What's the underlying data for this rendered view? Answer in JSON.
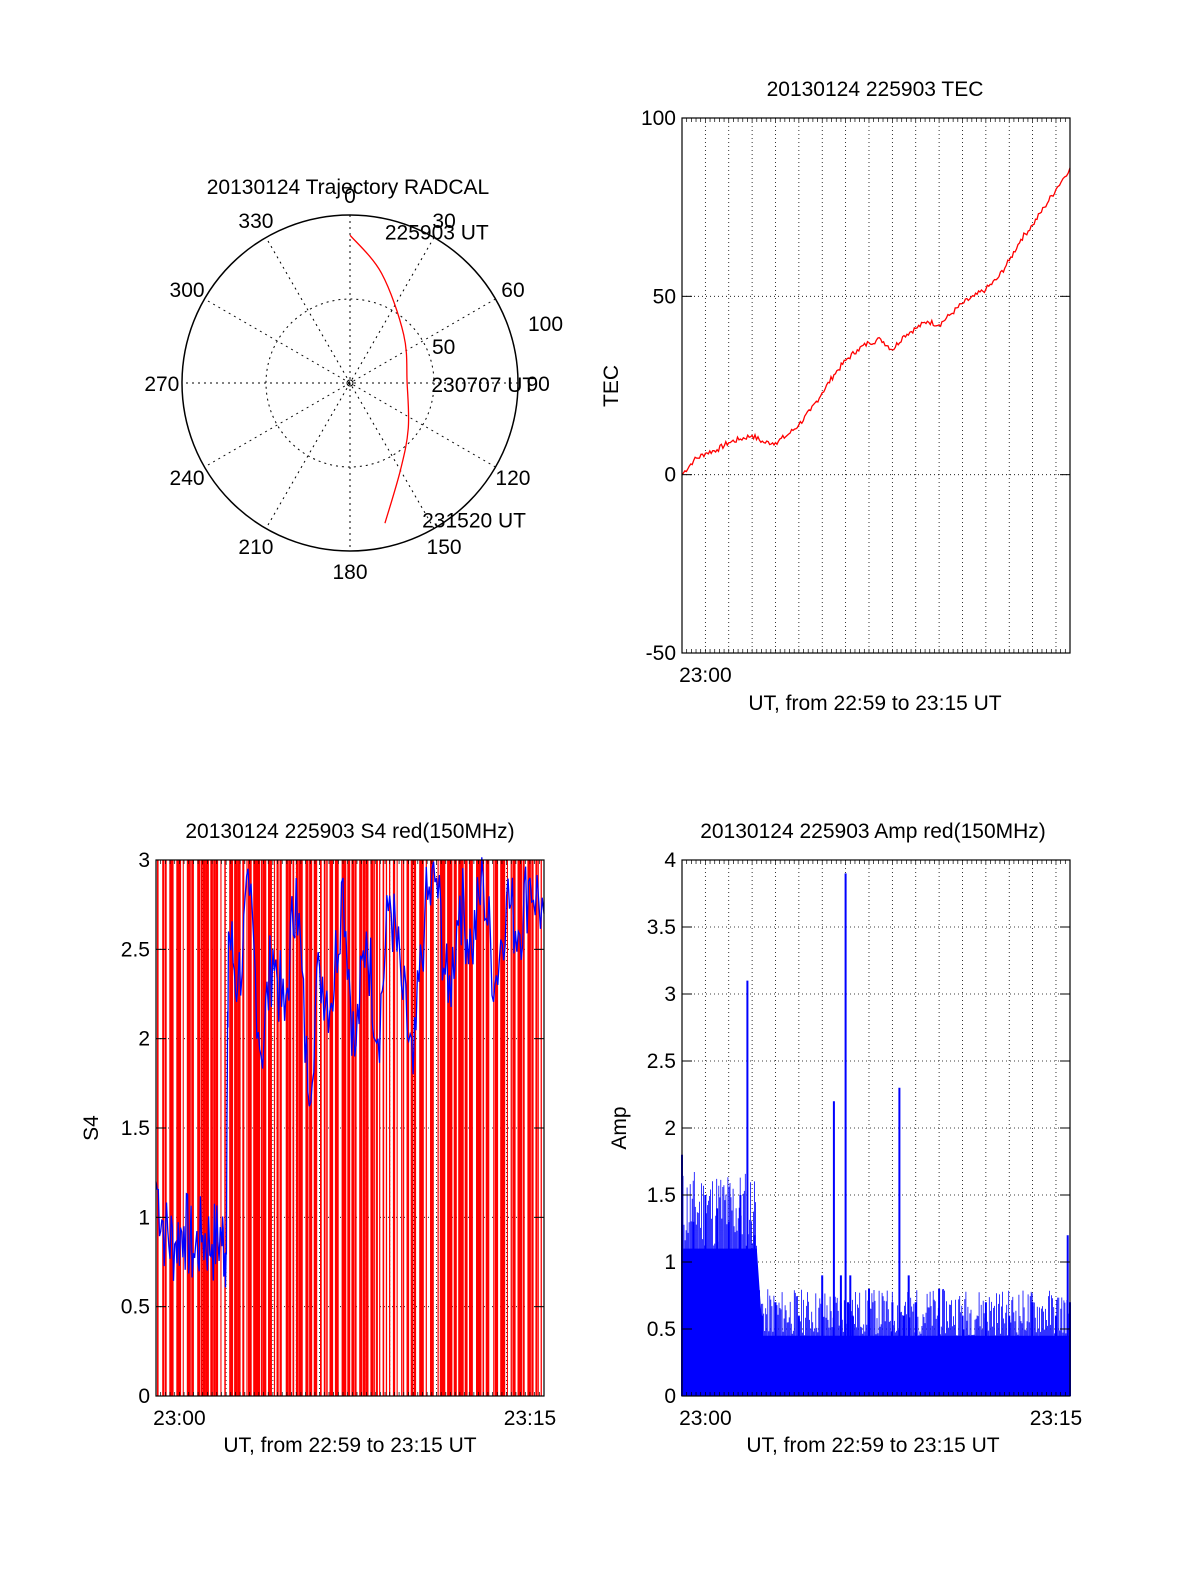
{
  "colors": {
    "red": "#ff0000",
    "blue": "#0000ff",
    "axis": "#000000",
    "grid": "#000000"
  },
  "chart_data": [
    {
      "type": "polar",
      "title": "20130124 Trajectory RADCAL",
      "angle_labels": [
        "0",
        "30",
        "60",
        "90",
        "120",
        "150",
        "180",
        "210",
        "240",
        "270",
        "300",
        "330"
      ],
      "radial_labels": [
        "50",
        "100"
      ],
      "rmax": 100,
      "trajectory": {
        "color": "red",
        "points": [
          {
            "az": 0,
            "r": 88
          },
          {
            "az": 16,
            "r": 68
          },
          {
            "az": 48,
            "r": 43
          },
          {
            "az": 90,
            "r": 34
          },
          {
            "az": 128,
            "r": 44
          },
          {
            "az": 150,
            "r": 60
          },
          {
            "az": 166,
            "r": 86
          }
        ]
      },
      "annotations": [
        {
          "text": "225903 UT",
          "az": 15,
          "r": 94
        },
        {
          "text": "230707 UT",
          "az": 90,
          "r": 52
        },
        {
          "text": "231520 UT",
          "az": 150,
          "r": 93
        }
      ]
    },
    {
      "type": "line",
      "title": "20130124 225903 TEC",
      "xlabel": "UT, from 22:59 to 23:15 UT",
      "ylabel": "TEC",
      "xlim": [
        0,
        16.6
      ],
      "ylim": [
        -50,
        100
      ],
      "yticks": [
        -50,
        0,
        50,
        100
      ],
      "xticks": [
        {
          "value": 1,
          "label": "23:00"
        }
      ],
      "grid_x": [
        1,
        2,
        3,
        4,
        5,
        6,
        7,
        8,
        9,
        10,
        11,
        12,
        13,
        14,
        15,
        16
      ],
      "grid_y": [
        0,
        50
      ],
      "series": [
        {
          "color": "red",
          "x": [
            0,
            0.5,
            1,
            1.5,
            2,
            2.5,
            3,
            3.5,
            4,
            4.5,
            5,
            5.5,
            6,
            6.5,
            7,
            7.5,
            8,
            8.5,
            9,
            9.5,
            10,
            10.5,
            11,
            11.5,
            12,
            12.5,
            13,
            13.5,
            14,
            14.5,
            15,
            15.5,
            16,
            16.6
          ],
          "y": [
            0,
            4,
            6,
            7,
            9,
            10,
            11,
            9,
            9,
            11,
            14,
            18,
            23,
            28,
            32,
            35,
            37,
            38,
            35,
            39,
            41,
            43,
            42,
            45,
            48,
            50,
            52,
            55,
            60,
            66,
            70,
            75,
            80,
            86
          ]
        }
      ]
    },
    {
      "type": "line",
      "title": "20130124 225903 S4 red(150MHz)",
      "xlabel": "UT, from 22:59 to 23:15 UT",
      "ylabel": "S4",
      "xlim": [
        0,
        16.6
      ],
      "ylim": [
        0,
        3
      ],
      "yticks": [
        0,
        0.5,
        1,
        1.5,
        2,
        2.5,
        3
      ],
      "xticks": [
        {
          "value": 1,
          "label": "23:00"
        },
        {
          "value": 16,
          "label": "23:15"
        }
      ],
      "grid_x": [
        1,
        2,
        3,
        4,
        5,
        6,
        7,
        8,
        9,
        10,
        11,
        12,
        13,
        14,
        15,
        16
      ],
      "grid_y": [
        0.5,
        1,
        1.5,
        2,
        2.5
      ],
      "series": [
        {
          "color": "blue",
          "x": [
            0,
            0.4,
            0.8,
            1.2,
            1.6,
            2,
            2.4,
            2.8,
            3,
            3.1,
            3.5,
            4,
            4.5,
            5,
            5.5,
            6,
            6.5,
            7,
            7.5,
            8,
            8.5,
            9,
            9.5,
            10,
            10.5,
            11,
            11.5,
            12,
            12.5,
            13,
            13.5,
            14,
            14.5,
            15,
            15.5,
            16,
            16.6
          ],
          "y": [
            1.2,
            0.9,
            0.85,
            0.95,
            0.8,
            0.9,
            0.85,
            0.9,
            0.8,
            2.6,
            2.3,
            2.8,
            1.9,
            2.5,
            2.1,
            2.9,
            1.7,
            2.4,
            2.2,
            2.9,
            1.9,
            2.6,
            2.0,
            2.8,
            2.3,
            1.8,
            2.7,
            2.9,
            2.2,
            2.8,
            2.5,
            2.9,
            2.3,
            2.8,
            2.6,
            2.9,
            2.7
          ]
        }
      ],
      "spikes": {
        "color": "red",
        "count": 110,
        "top": 3
      }
    },
    {
      "type": "line",
      "title": "20130124 225903 Amp red(150MHz)",
      "xlabel": "UT, from 22:59 to 23:15 UT",
      "ylabel": "Amp",
      "xlim": [
        0,
        16.6
      ],
      "ylim": [
        0,
        4
      ],
      "yticks": [
        0,
        0.5,
        1,
        1.5,
        2,
        2.5,
        3,
        3.5,
        4
      ],
      "xticks": [
        {
          "value": 1,
          "label": "23:00"
        },
        {
          "value": 16,
          "label": "23:15"
        }
      ],
      "grid_x": [
        1,
        2,
        3,
        4,
        5,
        6,
        7,
        8,
        9,
        10,
        11,
        12,
        13,
        14,
        15,
        16
      ],
      "grid_y": [
        0.5,
        1,
        1.5,
        2,
        2.5,
        3,
        3.5
      ],
      "series": [
        {
          "color": "blue",
          "x": [
            0,
            0.5,
            1,
            1.5,
            2,
            2.5,
            2.8,
            3.1,
            3.4,
            4,
            5,
            6,
            6.5,
            6.8,
            7,
            7.1,
            7.2,
            7.3,
            8,
            9,
            9.3,
            9.5,
            9.7,
            10,
            11,
            12,
            13,
            14,
            15,
            16,
            16.5,
            16.6
          ],
          "y": [
            1.8,
            1.3,
            1.5,
            1.4,
            1.3,
            1.5,
            3.1,
            1.2,
            0.6,
            0.7,
            0.6,
            0.9,
            2.2,
            0.9,
            3.9,
            0.7,
            0.9,
            0.6,
            0.8,
            0.7,
            2.3,
            0.6,
            0.9,
            0.7,
            0.8,
            0.6,
            0.7,
            0.6,
            0.7,
            0.6,
            1.2,
            0.7
          ]
        }
      ],
      "band": {
        "color": "blue",
        "top_before": 1.1,
        "top_after": 0.45,
        "transition_x": 3.2
      }
    }
  ]
}
